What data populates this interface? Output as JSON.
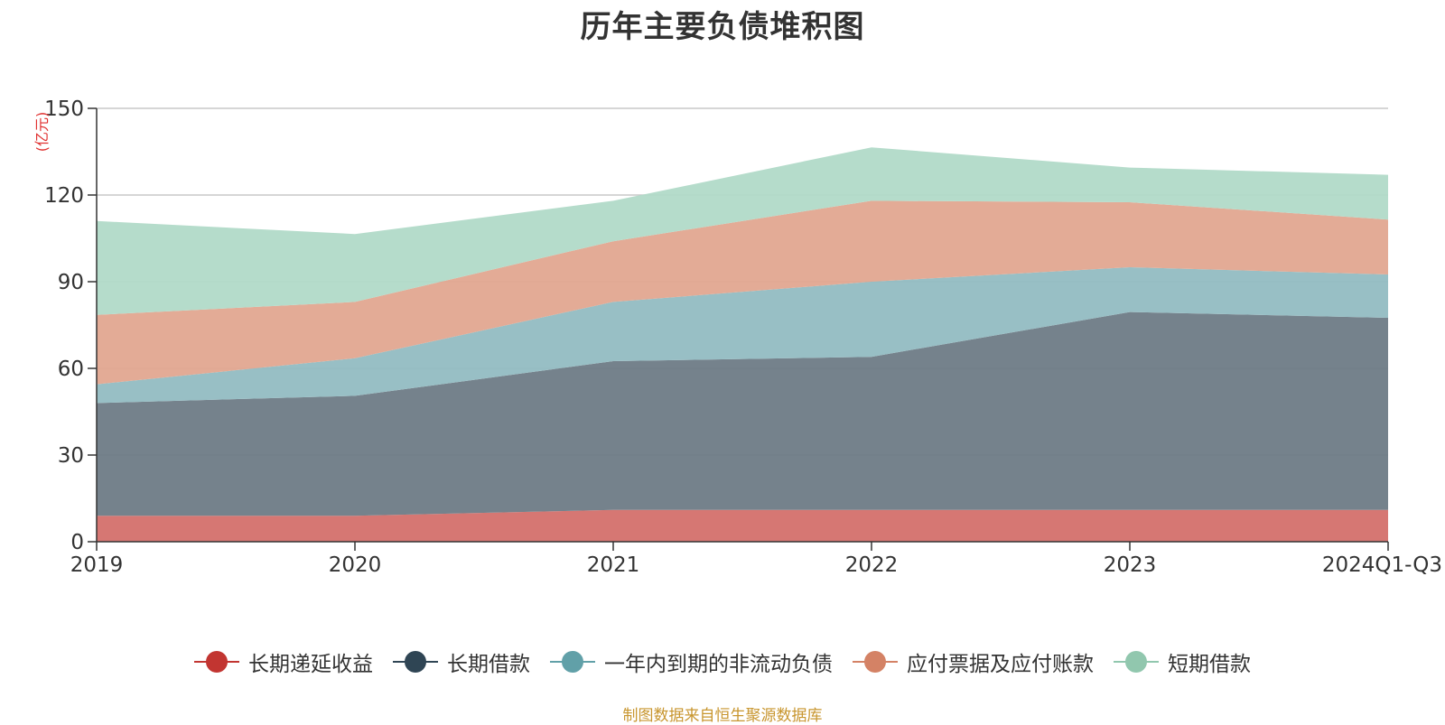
{
  "chart_data": {
    "type": "area",
    "stacked": true,
    "title": "历年主要负债堆积图",
    "ylabel": "(亿元)",
    "xlabel": "",
    "ylim": [
      0,
      150
    ],
    "yticks": [
      0,
      30,
      60,
      90,
      120,
      150
    ],
    "categories": [
      "2019",
      "2020",
      "2021",
      "2022",
      "2023",
      "2024Q1-Q3"
    ],
    "grid": true,
    "legend_position": "bottom",
    "series": [
      {
        "name": "长期递延收益",
        "color": "#c23531",
        "fill": "#d4706c",
        "values": [
          9,
          9,
          11,
          11,
          11,
          11
        ]
      },
      {
        "name": "长期借款",
        "color": "#2f4554",
        "fill": "#6e7b86",
        "values": [
          39,
          41.5,
          51.5,
          53,
          68.5,
          66.5
        ]
      },
      {
        "name": "一年内到期的非流动负债",
        "color": "#61a0a8",
        "fill": "#92bcc2",
        "values": [
          6.5,
          13,
          20.5,
          26,
          15.5,
          15
        ]
      },
      {
        "name": "应付票据及应付账款",
        "color": "#d48265",
        "fill": "#e1a790",
        "values": [
          24,
          19.5,
          21,
          28,
          22.5,
          19
        ]
      },
      {
        "name": "短期借款",
        "color": "#91c7ae",
        "fill": "#b1dac8",
        "values": [
          32.5,
          23.5,
          14,
          18.5,
          12,
          15.5
        ]
      }
    ]
  },
  "source_note": "制图数据来自恒生聚源数据库"
}
